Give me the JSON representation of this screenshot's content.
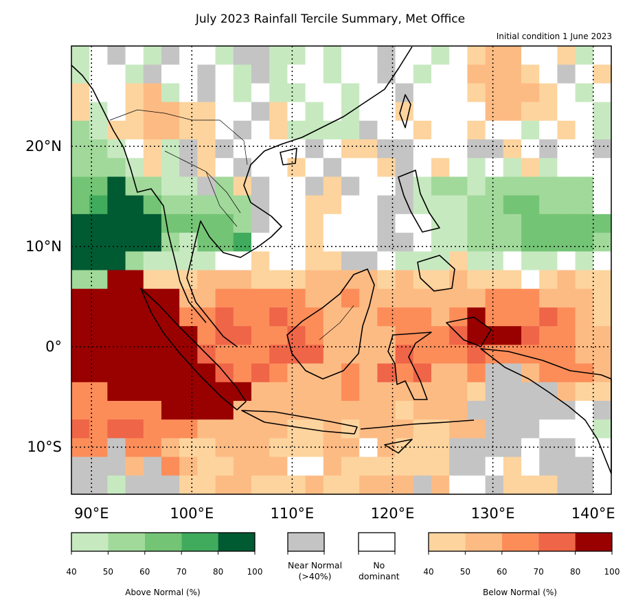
{
  "title": "July 2023 Rainfall Tercile Summary, Met Office",
  "subtitle": "Initial condition 1 June 2023",
  "map": {
    "lon_labels": [
      "90°E",
      "100°E",
      "110°E",
      "120°E",
      "130°E",
      "140°E"
    ],
    "lon_values": [
      90,
      100,
      110,
      120,
      130,
      140
    ],
    "lat_labels": [
      "20°N",
      "10°N",
      "0°",
      "10°S"
    ],
    "lat_values": [
      20,
      10,
      0,
      -10
    ],
    "extent": {
      "lon": [
        88,
        141.8
      ],
      "lat": [
        -14.7,
        30
      ]
    },
    "grid_codes": {
      "w": "No dominant",
      "n": "Near Normal",
      "1": "Above 40-50",
      "2": "Above 50-60",
      "3": "Above 60-70",
      "4": "Above 70-80",
      "5": "Above 80-100",
      "a": "Below 40-50",
      "b": "Below 50-60",
      "c": "Below 60-70",
      "d": "Below 70-80",
      "e": "Below 80-100"
    },
    "grid": [
      "1wnw1nww1nn11w1wwnww1wabbwwa1w",
      "1ww1nwwnw1n1ww1wwnw1wwbbbawnwa",
      "awwab1wnw1w11ww1wwnwwwabbbaw1w",
      "a1wabbaawwnaw1w1wwawwwwbbaaww1",
      "21aabbaawnwa1111nwwawwaww1waw1",
      "221wa1nanwwwwnwaannwwwnnawnwwn",
      "2221a1nawnwwawnwwanwaw1w1a1www",
      "3352211n2anwwnanwwn1221222222w",
      "3455322222nwwaawwnn1112233222w",
      "5555533332nwwawwwnww1122233333",
      "5555521334wwwawwwnnw1122233332",
      "55521111wwawwaannw111a11w11w1w",
      "22eeaaabbbaaabbbbabaabaaawabaa",
      "eeeeeebbcccccbbcbbbbbbbcccbbba",
      "eeeeeeccdccdccbbbcccbcecccdcba",
      "eeeeeeecddccdcbbbbcccdeeedccbb",
      "eeeeeeedcccdddbbbbdcccdcccccbb",
      "eeeeeeeedcdcbbbcbdcdbbcnnbcccb",
      "cceeeeeeeebbbbbcbbbbbbannnnbaa",
      "ccccceeeebbbbbbbbbabbbnnnnnnwn",
      "dcddcccbbbbbaababbbaabbnnnwww1",
      "ccnccbaabbbaaabbwbaaannnnwnnww",
      "nnnbncbaabbbwwbaaaaaannwawnnnw",
      "nn1nnnaabbaaabaabbbnbwwnaaannw"
    ]
  },
  "colors": {
    "w": "#ffffff",
    "n": "#c4c4c4",
    "1": "#c7e9c0",
    "2": "#a1d99b",
    "3": "#74c476",
    "4": "#41ab5d",
    "5": "#005a32",
    "a": "#fdd49e",
    "b": "#fdbb84",
    "c": "#fc8d59",
    "d": "#ef6548",
    "e": "#990000"
  },
  "legend": {
    "above": {
      "label": "Above Normal (%)",
      "ticks": [
        "40",
        "50",
        "60",
        "70",
        "80",
        "100"
      ],
      "colors": [
        "#c7e9c0",
        "#a1d99b",
        "#74c476",
        "#41ab5d",
        "#005a32"
      ]
    },
    "near_normal": {
      "label": "Near Normal\n(>40%)",
      "color": "#c4c4c4"
    },
    "no_dominant": {
      "label": "No\ndominant",
      "color": "#ffffff"
    },
    "below": {
      "label": "Below Normal (%)",
      "ticks": [
        "40",
        "50",
        "60",
        "70",
        "80",
        "100"
      ],
      "colors": [
        "#fdd49e",
        "#fdbb84",
        "#fc8d59",
        "#ef6548",
        "#990000"
      ]
    }
  }
}
